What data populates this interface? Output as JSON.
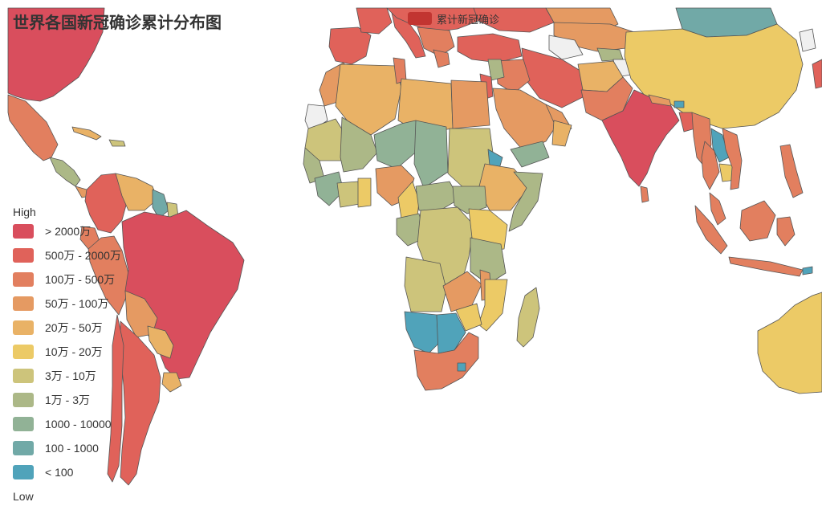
{
  "title": "世界各国新冠确诊累计分布图",
  "series_legend": {
    "label": "累计新冠确诊",
    "color": "#c23531"
  },
  "visual_map": {
    "high_text": "High",
    "low_text": "Low",
    "pieces": [
      {
        "label": "> 2000万",
        "color": "#d94e5d"
      },
      {
        "label": "500万 - 2000万",
        "color": "#e0625a"
      },
      {
        "label": "100万 - 500万",
        "color": "#e27f5f"
      },
      {
        "label": "50万 - 100万",
        "color": "#e59a62"
      },
      {
        "label": "20万 - 50万",
        "color": "#e9b266"
      },
      {
        "label": "10万 - 20万",
        "color": "#ecca66"
      },
      {
        "label": "3万 - 10万",
        "color": "#cdc47b"
      },
      {
        "label": "1万 - 3万",
        "color": "#acb887"
      },
      {
        "label": "1000 - 10000",
        "color": "#91b296"
      },
      {
        "label": "100 - 1000",
        "color": "#71a9a7"
      },
      {
        "label": "< 100",
        "color": "#50a3ba"
      }
    ]
  },
  "no_data_color": "#f0f0f0"
}
